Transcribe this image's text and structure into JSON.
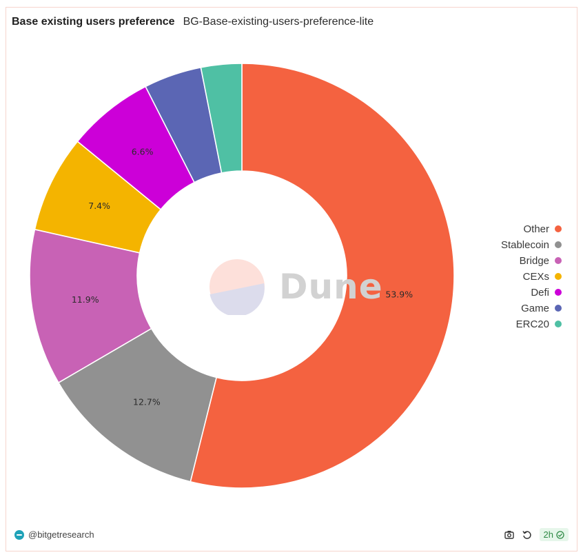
{
  "header": {
    "title": "Base existing users preference",
    "subtitle": "BG-Base-existing-users-preference-lite"
  },
  "chart_data": {
    "type": "pie",
    "donut": true,
    "legend_position": "right",
    "slices": [
      {
        "name": "Other",
        "value": 53.9,
        "label": "53.9%",
        "color": "#f46240"
      },
      {
        "name": "Stablecoin",
        "value": 12.7,
        "label": "12.7%",
        "color": "#919191"
      },
      {
        "name": "Bridge",
        "value": 11.9,
        "label": "11.9%",
        "color": "#c862b5"
      },
      {
        "name": "CEXs",
        "value": 7.4,
        "label": "7.4%",
        "color": "#f4b400"
      },
      {
        "name": "Defi",
        "value": 6.6,
        "label": "6.6%",
        "color": "#cc00d8"
      },
      {
        "name": "Game",
        "value": 4.4,
        "label": "",
        "color": "#5b66b4"
      },
      {
        "name": "ERC20",
        "value": 3.1,
        "label": "",
        "color": "#4fc0a4"
      }
    ]
  },
  "watermark": {
    "text": "Dune"
  },
  "footer": {
    "author": "@bitgetresearch",
    "refresh_badge": "2h",
    "icons": [
      "camera-icon",
      "refresh-icon",
      "check-circle-icon"
    ]
  }
}
